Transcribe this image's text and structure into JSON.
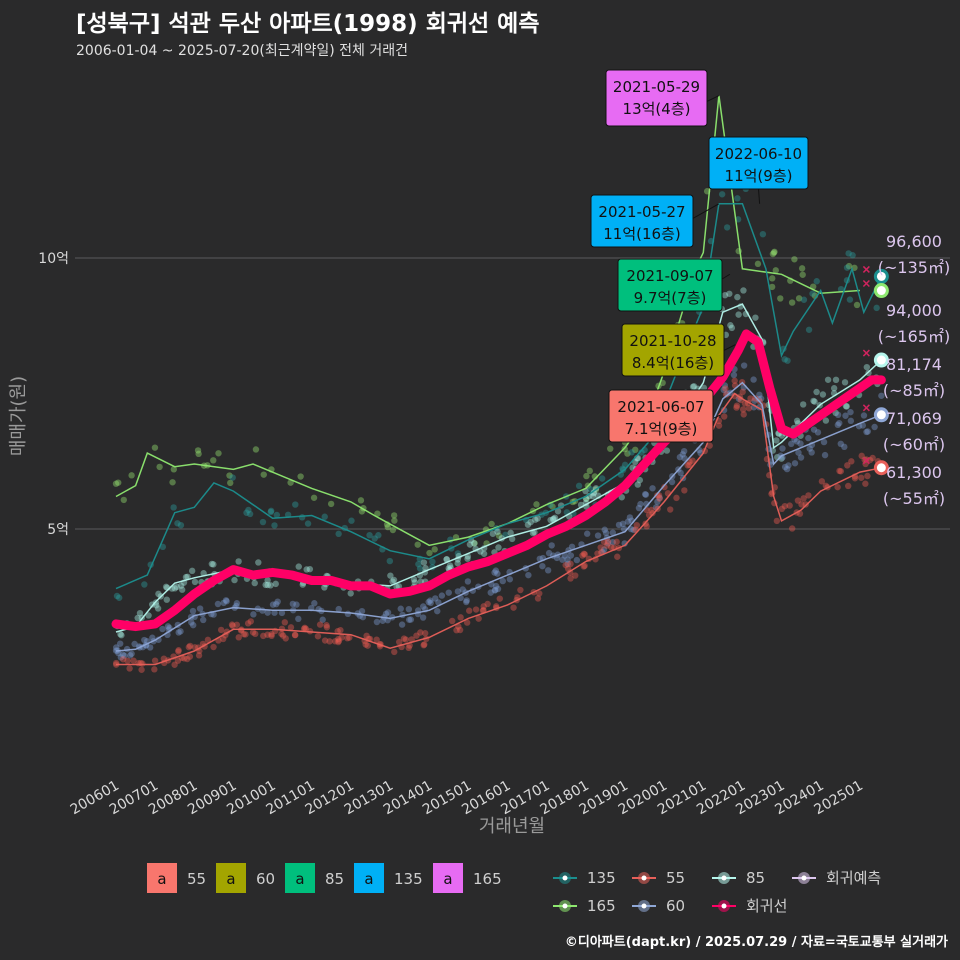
{
  "header": {
    "title": "[성북구] 석관 두산 아파트(1998) 회귀선 예측",
    "subtitle": "2006-01-04 ~ 2025-07-20(최근계약일) 전체 거래건"
  },
  "footer": {
    "credit": "©디아파트(dapt.kr) / 2025.07.29 / 자료=국토교통부 실거래가"
  },
  "chart_data": {
    "type": "line",
    "xlabel": "거래년월",
    "ylabel": "매매가(원)",
    "x_ticks": [
      "200601",
      "200701",
      "200801",
      "200901",
      "201001",
      "201101",
      "201201",
      "201301",
      "201401",
      "201501",
      "201601",
      "201701",
      "201801",
      "201901",
      "202001",
      "202101",
      "202201",
      "202301",
      "202401",
      "202501"
    ],
    "y_ticks": [
      {
        "value": 50000,
        "label": "5억"
      },
      {
        "value": 100000,
        "label": "10억"
      }
    ],
    "ylim": [
      13000,
      120000
    ],
    "xlim": [
      2005.75,
      2025.9
    ],
    "grid": "horizontal",
    "colors": {
      "55": "#f8766d",
      "60": "#a3a500",
      "85": "#00bf7d",
      "135": "#00b0f6",
      "165": "#e76bf3",
      "trend": "#ff0066"
    },
    "series": [
      {
        "name": "55",
        "line_color": "#e8605a",
        "point_color": "#ef5b52",
        "points": [
          [
            2006.0,
            25000
          ],
          [
            2007.0,
            25000
          ],
          [
            2008.0,
            27500
          ],
          [
            2009.0,
            31500
          ],
          [
            2010.0,
            31500
          ],
          [
            2011.0,
            31000
          ],
          [
            2012.0,
            30500
          ],
          [
            2013.0,
            28000
          ],
          [
            2014.0,
            30000
          ],
          [
            2015.0,
            33500
          ],
          [
            2016.0,
            36000
          ],
          [
            2017.0,
            39500
          ],
          [
            2018.0,
            44000
          ],
          [
            2019.0,
            47000
          ],
          [
            2020.0,
            55000
          ],
          [
            2021.0,
            64000
          ],
          [
            2021.4,
            71000
          ],
          [
            2021.8,
            75000
          ],
          [
            2022.0,
            74000
          ],
          [
            2022.5,
            72000
          ],
          [
            2022.8,
            56000
          ],
          [
            2023.0,
            51500
          ],
          [
            2023.5,
            53500
          ],
          [
            2024.0,
            57000
          ],
          [
            2025.0,
            60500
          ],
          [
            2025.55,
            61300
          ]
        ]
      },
      {
        "name": "60",
        "line_color": "#8fa7d6",
        "point_color": "#7d9ad0",
        "points": [
          [
            2006.0,
            27500
          ],
          [
            2006.5,
            27800
          ],
          [
            2007.0,
            29500
          ],
          [
            2008.0,
            34000
          ],
          [
            2009.0,
            35500
          ],
          [
            2010.0,
            35000
          ],
          [
            2011.0,
            35000
          ],
          [
            2012.0,
            34500
          ],
          [
            2013.0,
            33500
          ],
          [
            2014.0,
            35000
          ],
          [
            2015.0,
            38500
          ],
          [
            2016.0,
            41500
          ],
          [
            2017.0,
            44500
          ],
          [
            2018.0,
            47000
          ],
          [
            2019.0,
            49500
          ],
          [
            2020.0,
            58000
          ],
          [
            2021.0,
            66000
          ],
          [
            2021.5,
            74000
          ],
          [
            2022.0,
            77000
          ],
          [
            2022.5,
            73000
          ],
          [
            2022.8,
            62000
          ],
          [
            2023.0,
            63500
          ],
          [
            2024.0,
            66500
          ],
          [
            2025.0,
            69500
          ],
          [
            2025.55,
            71069
          ]
        ]
      },
      {
        "name": "85",
        "line_color": "#b5f5ec",
        "point_color": "#a6eee3",
        "points": [
          [
            2006.0,
            31000
          ],
          [
            2006.5,
            32000
          ],
          [
            2007.0,
            36500
          ],
          [
            2007.5,
            40000
          ],
          [
            2008.0,
            41000
          ],
          [
            2009.0,
            42500
          ],
          [
            2010.0,
            41500
          ],
          [
            2011.0,
            41000
          ],
          [
            2012.0,
            40000
          ],
          [
            2013.0,
            39500
          ],
          [
            2014.0,
            42500
          ],
          [
            2015.0,
            45500
          ],
          [
            2016.0,
            48500
          ],
          [
            2017.0,
            50500
          ],
          [
            2018.0,
            54500
          ],
          [
            2019.0,
            58500
          ],
          [
            2020.0,
            66000
          ],
          [
            2021.0,
            77000
          ],
          [
            2021.5,
            90000
          ],
          [
            2022.0,
            91500
          ],
          [
            2022.5,
            85000
          ],
          [
            2022.8,
            65000
          ],
          [
            2023.0,
            66000
          ],
          [
            2024.0,
            73000
          ],
          [
            2025.0,
            77500
          ],
          [
            2025.55,
            81174
          ]
        ]
      },
      {
        "name": "135",
        "line_color": "#1b8f8f",
        "point_color": "#2a9d9d",
        "points": [
          [
            2006.0,
            39000
          ],
          [
            2006.8,
            41500
          ],
          [
            2007.5,
            53000
          ],
          [
            2008.0,
            54000
          ],
          [
            2008.5,
            58500
          ],
          [
            2009.0,
            57000
          ],
          [
            2010.0,
            52000
          ],
          [
            2011.0,
            52500
          ],
          [
            2012.0,
            49500
          ],
          [
            2013.0,
            46000
          ],
          [
            2014.0,
            44500
          ],
          [
            2015.0,
            48000
          ],
          [
            2016.0,
            51000
          ],
          [
            2017.0,
            53000
          ],
          [
            2018.0,
            56000
          ],
          [
            2019.0,
            61000
          ],
          [
            2019.6,
            66000
          ],
          [
            2020.0,
            73000
          ],
          [
            2020.6,
            84000
          ],
          [
            2021.0,
            91000
          ],
          [
            2021.4,
            110000
          ],
          [
            2022.0,
            110000
          ],
          [
            2022.6,
            98000
          ],
          [
            2023.0,
            82000
          ],
          [
            2023.3,
            86500
          ],
          [
            2024.0,
            94000
          ],
          [
            2024.3,
            88000
          ],
          [
            2024.8,
            98000
          ],
          [
            2025.1,
            90000
          ],
          [
            2025.55,
            96600
          ]
        ]
      },
      {
        "name": "165",
        "line_color": "#8ee870",
        "point_color": "#95e26f",
        "points": [
          [
            2006.0,
            56000
          ],
          [
            2006.5,
            58000
          ],
          [
            2006.8,
            64000
          ],
          [
            2007.5,
            61500
          ],
          [
            2008.0,
            62000
          ],
          [
            2009.0,
            61000
          ],
          [
            2009.5,
            62000
          ],
          [
            2011.0,
            57500
          ],
          [
            2012.0,
            55000
          ],
          [
            2012.6,
            52500
          ],
          [
            2014.0,
            47000
          ],
          [
            2015.0,
            48500
          ],
          [
            2016.0,
            51000
          ],
          [
            2017.0,
            54500
          ],
          [
            2018.0,
            57500
          ],
          [
            2019.0,
            65000
          ],
          [
            2019.6,
            71000
          ],
          [
            2020.0,
            79000
          ],
          [
            2020.8,
            98000
          ],
          [
            2021.0,
            101000
          ],
          [
            2021.4,
            130000
          ],
          [
            2022.0,
            98000
          ],
          [
            2023.0,
            97000
          ],
          [
            2024.0,
            93500
          ],
          [
            2025.0,
            94000
          ]
        ]
      }
    ],
    "trend": {
      "name": "회귀선",
      "color": "#ff0066",
      "points": [
        [
          2006.0,
          32500
        ],
        [
          2006.5,
          32000
        ],
        [
          2007.0,
          32500
        ],
        [
          2007.5,
          35000
        ],
        [
          2008.0,
          38000
        ],
        [
          2008.5,
          40500
        ],
        [
          2009.0,
          42500
        ],
        [
          2009.5,
          41500
        ],
        [
          2010.0,
          42000
        ],
        [
          2010.5,
          41500
        ],
        [
          2011.0,
          40500
        ],
        [
          2011.5,
          40500
        ],
        [
          2012.0,
          39500
        ],
        [
          2012.5,
          39500
        ],
        [
          2013.0,
          38000
        ],
        [
          2013.5,
          38500
        ],
        [
          2014.0,
          39500
        ],
        [
          2014.5,
          41500
        ],
        [
          2015.0,
          43000
        ],
        [
          2015.5,
          44000
        ],
        [
          2016.0,
          45500
        ],
        [
          2016.5,
          47000
        ],
        [
          2017.0,
          49000
        ],
        [
          2017.5,
          50500
        ],
        [
          2018.0,
          52500
        ],
        [
          2018.5,
          55000
        ],
        [
          2019.0,
          58000
        ],
        [
          2019.5,
          62000
        ],
        [
          2020.0,
          66000
        ],
        [
          2020.5,
          69500
        ],
        [
          2021.0,
          73500
        ],
        [
          2021.5,
          78000
        ],
        [
          2021.9,
          83000
        ],
        [
          2022.1,
          86000
        ],
        [
          2022.4,
          84500
        ],
        [
          2022.7,
          76000
        ],
        [
          2023.0,
          68500
        ],
        [
          2023.3,
          67500
        ],
        [
          2023.6,
          69000
        ],
        [
          2024.0,
          71000
        ],
        [
          2024.5,
          73500
        ],
        [
          2025.0,
          76000
        ],
        [
          2025.3,
          77500
        ],
        [
          2025.55,
          77500
        ]
      ]
    },
    "predictions": [
      {
        "series": "135",
        "value": 96600,
        "label": "96,600",
        "sub": "(~135㎡)"
      },
      {
        "series": "165",
        "value": 94000,
        "label": "94,000",
        "sub": "(~165㎡)"
      },
      {
        "series": "85",
        "value": 81174,
        "label": "81,174",
        "sub": "(~85㎡)"
      },
      {
        "series": "60",
        "value": 71069,
        "label": "71,069",
        "sub": "(~60㎡)"
      },
      {
        "series": "55",
        "value": 61300,
        "label": "61,300",
        "sub": "(~55㎡)"
      }
    ],
    "annotations": [
      {
        "series": "165",
        "date": "2021-05-29",
        "price": "13억(4층)",
        "x": 2021.41,
        "y": 130000
      },
      {
        "series": "135",
        "date": "2022-06-10",
        "price": "11억(9층)",
        "x": 2022.44,
        "y": 110000
      },
      {
        "series": "135",
        "date": "2021-05-27",
        "price": "11억(16층)",
        "x": 2021.4,
        "y": 110000
      },
      {
        "series": "85",
        "date": "2021-09-07",
        "price": "9.7억(7층)",
        "x": 2021.68,
        "y": 97000
      },
      {
        "series": "60",
        "date": "2021-10-28",
        "price": "8.4억(16층)",
        "x": 2021.82,
        "y": 84000
      },
      {
        "series": "55",
        "date": "2021-06-07",
        "price": "7.1억(9층)",
        "x": 2021.43,
        "y": 71000
      }
    ],
    "legend": {
      "placement": "bottom",
      "label_keys": [
        {
          "key": "a",
          "name": "55"
        },
        {
          "key": "a",
          "name": "60"
        },
        {
          "key": "a",
          "name": "85"
        },
        {
          "key": "a",
          "name": "135"
        },
        {
          "key": "a",
          "name": "165"
        }
      ],
      "line_keys": [
        {
          "name": "135"
        },
        {
          "name": "55"
        },
        {
          "name": "85"
        },
        {
          "name": "회귀예측"
        },
        {
          "name": "165"
        },
        {
          "name": "60"
        },
        {
          "name": "회귀선"
        }
      ]
    }
  }
}
